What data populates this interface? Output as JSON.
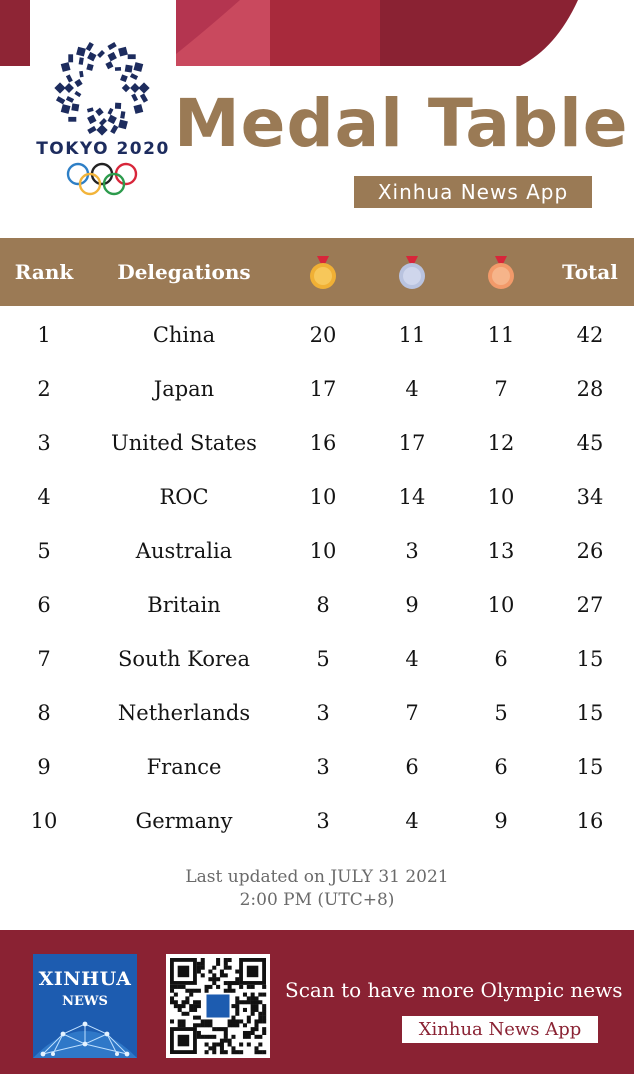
{
  "header": {
    "tokyo_label": "TOKYO 2020",
    "title": "Medal Table",
    "app_badge": "Xinhua News App"
  },
  "table": {
    "columns": {
      "rank": "Rank",
      "delegations": "Delegations",
      "gold_icon": "gold-medal-icon",
      "silver_icon": "silver-medal-icon",
      "bronze_icon": "bronze-medal-icon",
      "total": "Total"
    },
    "rows": [
      {
        "rank": "1",
        "delegation": "China",
        "gold": "20",
        "silver": "11",
        "bronze": "11",
        "total": "42"
      },
      {
        "rank": "2",
        "delegation": "Japan",
        "gold": "17",
        "silver": "4",
        "bronze": "7",
        "total": "28"
      },
      {
        "rank": "3",
        "delegation": "United States",
        "gold": "16",
        "silver": "17",
        "bronze": "12",
        "total": "45"
      },
      {
        "rank": "4",
        "delegation": "ROC",
        "gold": "10",
        "silver": "14",
        "bronze": "10",
        "total": "34"
      },
      {
        "rank": "5",
        "delegation": "Australia",
        "gold": "10",
        "silver": "3",
        "bronze": "13",
        "total": "26"
      },
      {
        "rank": "6",
        "delegation": "Britain",
        "gold": "8",
        "silver": "9",
        "bronze": "10",
        "total": "27"
      },
      {
        "rank": "7",
        "delegation": "South Korea",
        "gold": "5",
        "silver": "4",
        "bronze": "6",
        "total": "15"
      },
      {
        "rank": "8",
        "delegation": "Netherlands",
        "gold": "3",
        "silver": "7",
        "bronze": "5",
        "total": "15"
      },
      {
        "rank": "9",
        "delegation": "France",
        "gold": "3",
        "silver": "6",
        "bronze": "6",
        "total": "15"
      },
      {
        "rank": "10",
        "delegation": "Germany",
        "gold": "3",
        "silver": "4",
        "bronze": "9",
        "total": "16"
      }
    ]
  },
  "updated": {
    "line1": "Last updated  on JULY 31 2021",
    "line2": "2:00 PM (UTC+8)"
  },
  "footer": {
    "logo_title": "XINHUA",
    "logo_sub": "NEWS",
    "scan_text": "Scan to have more Olympic news",
    "app_box": "Xinhua News App"
  },
  "colors": {
    "brown": "#9b7a55",
    "maroon": "#8a2233",
    "gold": "#f0b035",
    "silver": "#b9c3df",
    "bronze": "#f29a6a",
    "emblem_blue": "#1d2c5e"
  }
}
